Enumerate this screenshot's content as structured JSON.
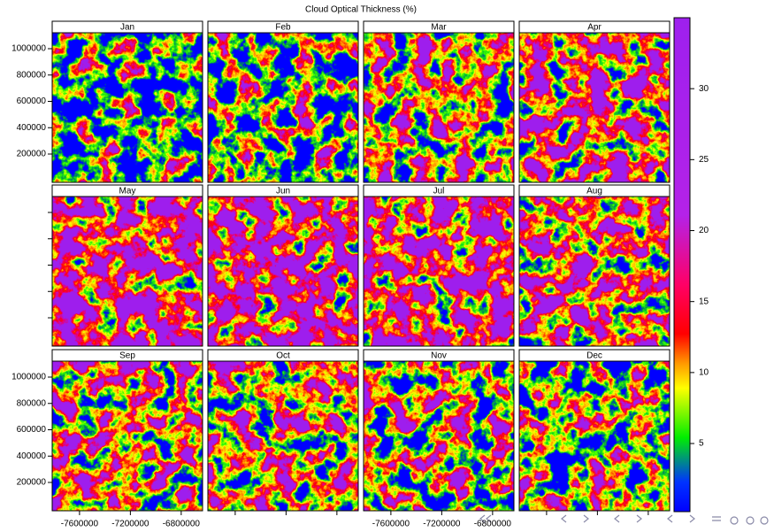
{
  "chart_data": {
    "type": "raster",
    "title": "Cloud Optical Thickness (%)",
    "panels": [
      "Jan",
      "Feb",
      "Mar",
      "Apr",
      "May",
      "Jun",
      "Jul",
      "Aug",
      "Sep",
      "Oct",
      "Nov",
      "Dec"
    ],
    "xlim": [
      -7815000,
      -6632000
    ],
    "xticks": [
      -7600000,
      -7200000,
      -6800000
    ],
    "ylim": [
      -15000,
      1121000
    ],
    "yticks": [
      200000,
      400000,
      600000,
      800000,
      1000000
    ],
    "colorbar": {
      "lim": [
        0.2,
        35
      ],
      "ticks": [
        5,
        10,
        15,
        20,
        25,
        30
      ]
    }
  }
}
